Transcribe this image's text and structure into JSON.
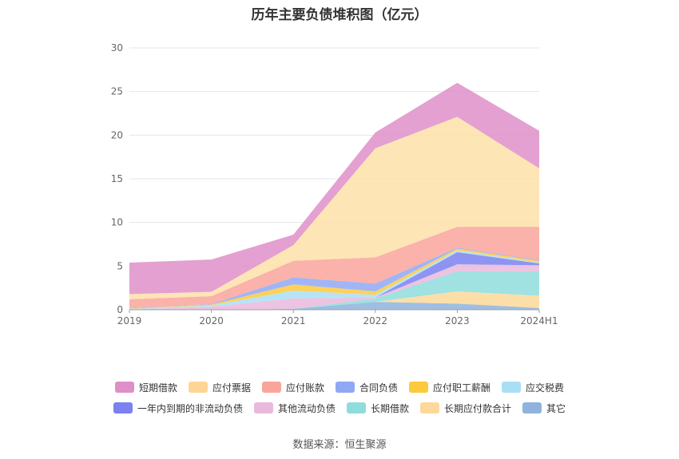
{
  "chart_data": {
    "type": "area",
    "title": "历年主要负债堆积图（亿元）",
    "categories": [
      "2019",
      "2020",
      "2021",
      "2022",
      "2023",
      "2024H1"
    ],
    "ylim": [
      0,
      30
    ],
    "yticks": [
      0,
      5,
      10,
      15,
      20,
      25,
      30
    ],
    "grid": true,
    "legend_position": "bottom",
    "stacked": true,
    "series": [
      {
        "name": "其它",
        "color": "#8fb3dc",
        "values": [
          0,
          0,
          0.1,
          0.9,
          0.7,
          0.2
        ]
      },
      {
        "name": "长期应付款合计",
        "color": "#fcd89a",
        "values": [
          0,
          0,
          0,
          0,
          1.4,
          1.4
        ]
      },
      {
        "name": "长期借款",
        "color": "#8fdcdc",
        "values": [
          0,
          0,
          0,
          0.4,
          2.3,
          2.8
        ]
      },
      {
        "name": "其他流动负债",
        "color": "#e9b9dc",
        "values": [
          0.05,
          0.35,
          1.2,
          0.1,
          0.8,
          0.7
        ]
      },
      {
        "name": "一年内到期的非流动负债",
        "color": "#7b81f0",
        "values": [
          0,
          0,
          0,
          0,
          1.4,
          0.2
        ]
      },
      {
        "name": "应交税费",
        "color": "#a9dff5",
        "values": [
          0.05,
          0.15,
          0.9,
          0.3,
          0.2,
          0.1
        ]
      },
      {
        "name": "应付职工薪酬",
        "color": "#fec93d",
        "values": [
          0.05,
          0.1,
          0.7,
          0.4,
          0.2,
          0.2
        ]
      },
      {
        "name": "合同负债",
        "color": "#8fa8f5",
        "values": [
          0.05,
          0.05,
          0.8,
          0.9,
          0.1,
          0.1
        ]
      },
      {
        "name": "应付账款",
        "color": "#f9a59c",
        "values": [
          1.0,
          0.9,
          1.9,
          3.0,
          2.4,
          3.8
        ]
      },
      {
        "name": "应付票据",
        "color": "#fde0a8",
        "values": [
          0.6,
          0.5,
          1.8,
          12.5,
          12.6,
          6.7
        ]
      },
      {
        "name": "短期借款",
        "color": "#de8fc8",
        "values": [
          3.6,
          3.7,
          1.2,
          1.8,
          3.9,
          4.3
        ]
      }
    ]
  },
  "legend": {
    "rows": [
      [
        {
          "label": "短期借款",
          "color": "#de8fc8"
        },
        {
          "label": "应付票据",
          "color": "#fdd596"
        },
        {
          "label": "应付账款",
          "color": "#f9a59c"
        },
        {
          "label": "合同负债",
          "color": "#8fa8f5"
        },
        {
          "label": "应付职工薪酬",
          "color": "#fec93d"
        },
        {
          "label": "应交税费",
          "color": "#a9dff5"
        }
      ],
      [
        {
          "label": "一年内到期的非流动负债",
          "color": "#7b81f0"
        },
        {
          "label": "其他流动负债",
          "color": "#e9b9dc"
        },
        {
          "label": "长期借款",
          "color": "#8fdcdc"
        },
        {
          "label": "长期应付款合计",
          "color": "#fcd89a"
        },
        {
          "label": "其它",
          "color": "#8fb3dc"
        }
      ]
    ]
  },
  "source": "数据来源：恒生聚源"
}
